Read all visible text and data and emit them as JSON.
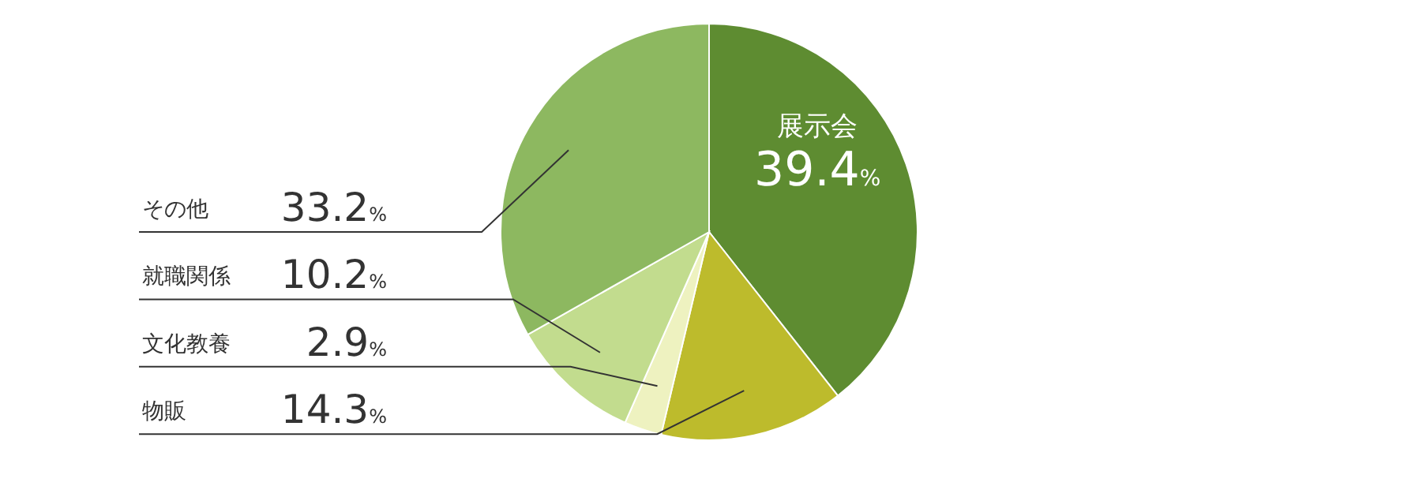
{
  "chart_data": {
    "type": "pie",
    "categories": [
      "展示会",
      "物販",
      "文化教養",
      "就職関係",
      "その他"
    ],
    "values": [
      39.4,
      14.3,
      2.9,
      10.2,
      33.2
    ],
    "colors": [
      "#5e8c31",
      "#bdbb2c",
      "#eef2c0",
      "#c2dc8e",
      "#8db860"
    ],
    "value_labels": [
      "39.4%",
      "14.3%",
      "2.9%",
      "10.2%",
      "33.2%"
    ]
  }
}
